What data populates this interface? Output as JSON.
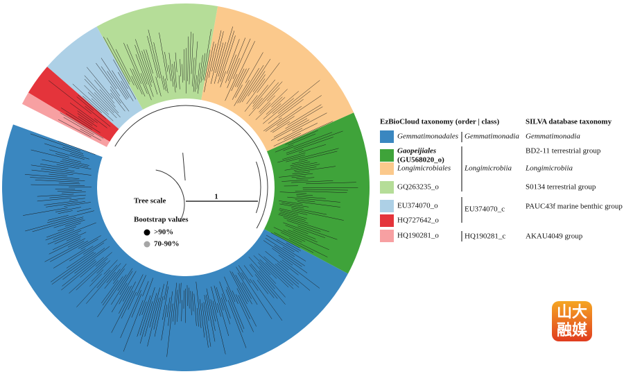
{
  "tree": {
    "scale_label": "Tree scale",
    "scale_value": "1",
    "bootstrap_title": "Bootstrap values",
    "bootstrap": [
      {
        "label": ">90%",
        "color": "#000000"
      },
      {
        "label": "70-90%",
        "color": "#a6a6a6"
      }
    ]
  },
  "legend": {
    "headers": [
      "EzBioCloud taxonomy (order | class)",
      "SILVA database taxonomy"
    ],
    "orders": [
      {
        "lines": [
          "Gemmatimonadales"
        ],
        "color": "#3a87c0"
      },
      {
        "lines": [
          "Gaopeijiales",
          "(GU568020_o)"
        ],
        "color": "#3fa33a"
      },
      {
        "lines": [
          "Longimicrobiales"
        ],
        "color": "#fbc98c"
      },
      {
        "lines": [
          "GQ263235_o"
        ],
        "color": "#b5dd98"
      },
      {
        "lines": [
          "EU374070_o"
        ],
        "color": "#add0e6"
      },
      {
        "lines": [
          "HQ727642_o"
        ],
        "color": "#e4343b"
      },
      {
        "lines": [
          "HQ190281_o"
        ],
        "color": "#f7a0a2"
      }
    ],
    "classes": [
      "Gemmatimonadia",
      "Longimicrobiia",
      "EU374070_c",
      "HQ190281_c"
    ],
    "silva": [
      "Gemmatimonadia",
      "BD2-11 terrestrial group",
      "Longimicrobiia",
      "S0134 terrestrial group",
      "PAUC43f marine benthic group",
      "AKAU4049 group"
    ]
  },
  "logo": [
    "山大",
    "融媒"
  ]
}
